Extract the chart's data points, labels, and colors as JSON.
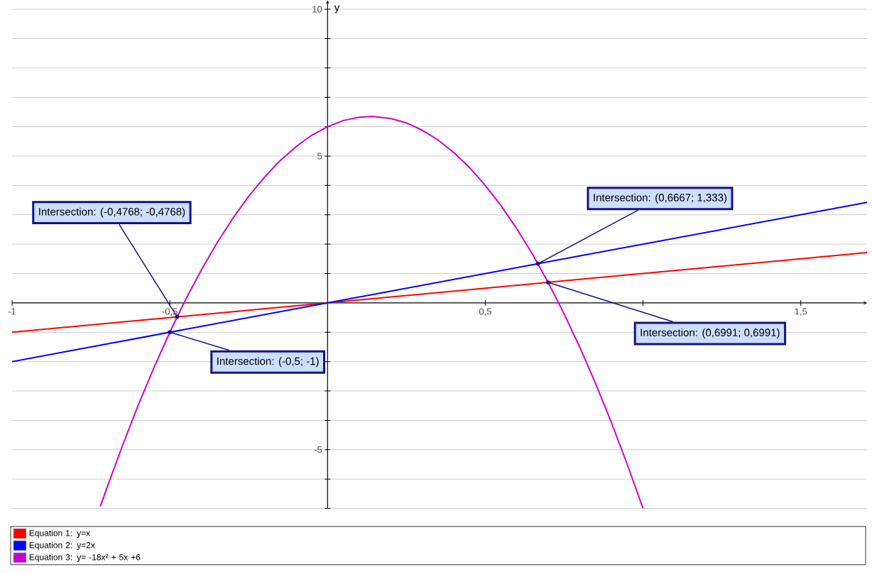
{
  "chart_data": {
    "type": "line",
    "ylabel": "y",
    "xlim": [
      -1,
      1.71
    ],
    "ylim": [
      -7,
      10.3
    ],
    "xticks": [
      {
        "value": -1,
        "label": "-1"
      },
      {
        "value": -0.5,
        "label": "-0,5"
      },
      {
        "value": 0.5,
        "label": "0,5"
      },
      {
        "value": 1,
        "label": null
      },
      {
        "value": 1.5,
        "label": "1,5"
      }
    ],
    "yticks": [
      {
        "value": -7,
        "label": null
      },
      {
        "value": -6,
        "label": null
      },
      {
        "value": -5,
        "label": "-5"
      },
      {
        "value": -4,
        "label": null
      },
      {
        "value": -3,
        "label": null
      },
      {
        "value": -2,
        "label": null
      },
      {
        "value": -1,
        "label": null
      },
      {
        "value": 1,
        "label": null
      },
      {
        "value": 2,
        "label": null
      },
      {
        "value": 3,
        "label": null
      },
      {
        "value": 4,
        "label": null
      },
      {
        "value": 5,
        "label": "5"
      },
      {
        "value": 6,
        "label": null
      },
      {
        "value": 7,
        "label": null
      },
      {
        "value": 8,
        "label": null
      },
      {
        "value": 9,
        "label": null
      },
      {
        "value": 10,
        "label": "10"
      }
    ],
    "grid": "y",
    "legend": "bottom left",
    "marker": "none",
    "line_style": "solid",
    "series": [
      {
        "name": "Equation 1: y=x",
        "color": "#ff0000",
        "x": [
          -1,
          1.71
        ],
        "values": [
          -1,
          1.71
        ]
      },
      {
        "name": "Equation 2: y=2x",
        "color": "#0000ff",
        "x": [
          -1,
          1.71
        ],
        "values": [
          -2,
          3.42
        ]
      },
      {
        "name": "Equation 3: y= -18x² + 5x +6",
        "color": "#cc00cc",
        "x": [
          -0.72,
          -0.7,
          -0.65,
          -0.6,
          -0.55,
          -0.5,
          -0.45,
          -0.4,
          -0.35,
          -0.3,
          -0.25,
          -0.2,
          -0.15,
          -0.1,
          -0.05,
          0,
          0.05,
          0.1,
          0.14,
          0.2,
          0.25,
          0.3,
          0.35,
          0.4,
          0.45,
          0.5,
          0.55,
          0.6,
          0.65,
          0.7,
          0.75,
          0.8,
          0.85,
          0.9,
          0.95,
          1.0
        ],
        "values": [
          -6.93,
          -6.32,
          -4.86,
          -3.48,
          -2.2,
          -1,
          0.11,
          1.12,
          2.05,
          2.88,
          3.63,
          4.28,
          4.85,
          5.32,
          5.71,
          6,
          6.21,
          6.32,
          6.35,
          6.28,
          6.13,
          5.88,
          5.55,
          5.12,
          4.61,
          4,
          3.31,
          2.52,
          1.65,
          0.68,
          -0.38,
          -1.52,
          -2.76,
          -4.08,
          -5.5,
          -7
        ]
      }
    ],
    "annotations": [
      {
        "text": "Intersection: (0,6667; 1,333)",
        "x": 0.6667,
        "y": 1.333
      },
      {
        "text": "Intersection: (-0,4768; -0,4768)",
        "x": -0.4768,
        "y": -0.4768
      },
      {
        "text": "Intersection: (0,6991; 0,6991)",
        "x": 0.6991,
        "y": 0.6991
      },
      {
        "text": "Intersection: (-0,5; -1)",
        "x": -0.5,
        "y": -1
      }
    ]
  }
}
